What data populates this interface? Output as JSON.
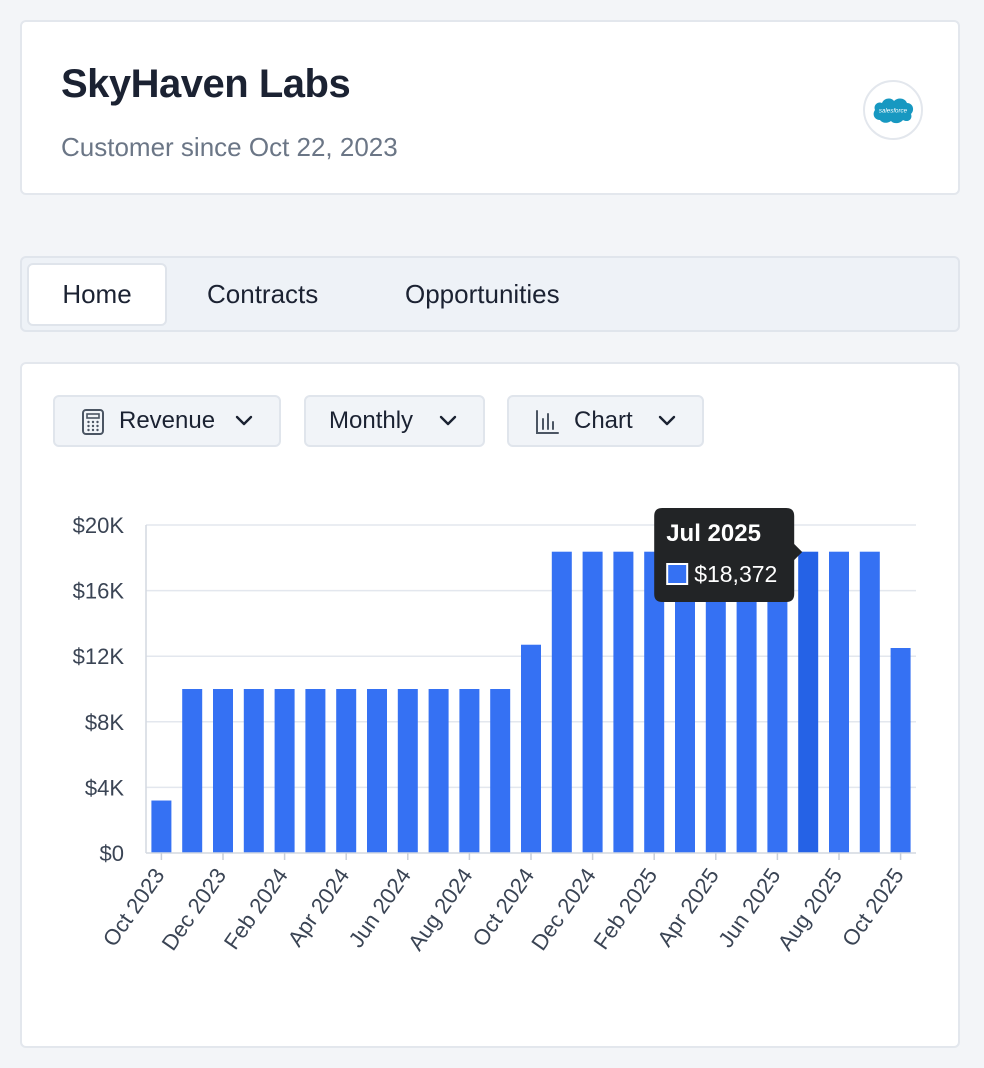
{
  "header": {
    "company_name": "SkyHaven Labs",
    "customer_since": "Customer since Oct 22, 2023",
    "logo_text": "salesforce",
    "logo_icon": "salesforce-cloud-icon"
  },
  "tabs": [
    {
      "label": "Home",
      "active": true
    },
    {
      "label": "Contracts",
      "active": false
    },
    {
      "label": "Opportunities",
      "active": false
    }
  ],
  "controls": {
    "metric": {
      "label": "Revenue",
      "icon": "calculator-icon"
    },
    "period": {
      "label": "Monthly"
    },
    "view": {
      "label": "Chart",
      "icon": "bar-chart-icon"
    }
  },
  "tooltip": {
    "title": "Jul 2025",
    "value": "$18,372"
  },
  "colors": {
    "bar": "#3571f3",
    "bar_hover": "#2562e6",
    "tooltip_bg": "#222426"
  },
  "chart_data": {
    "type": "bar",
    "title": "",
    "xlabel": "",
    "ylabel": "",
    "ylim": [
      0,
      20000
    ],
    "yticks": [
      0,
      4000,
      8000,
      12000,
      16000,
      20000
    ],
    "ytick_labels": [
      "$0",
      "$4K",
      "$8K",
      "$12K",
      "$16K",
      "$20K"
    ],
    "grid": true,
    "legend": "none",
    "highlight_index": 21,
    "categories": [
      "Oct 2023",
      "Nov 2023",
      "Dec 2023",
      "Jan 2024",
      "Feb 2024",
      "Mar 2024",
      "Apr 2024",
      "May 2024",
      "Jun 2024",
      "Jul 2024",
      "Aug 2024",
      "Sep 2024",
      "Oct 2024",
      "Nov 2024",
      "Dec 2024",
      "Jan 2025",
      "Feb 2025",
      "Mar 2025",
      "Apr 2025",
      "May 2025",
      "Jun 2025",
      "Jul 2025",
      "Aug 2025",
      "Sep 2025",
      "Oct 2025"
    ],
    "tick_labels": [
      "Oct 2023",
      "Dec 2023",
      "Feb 2024",
      "Apr 2024",
      "Jun 2024",
      "Aug 2024",
      "Oct 2024",
      "Dec 2024",
      "Feb 2025",
      "Apr 2025",
      "Jun 2025",
      "Aug 2025",
      "Oct 2025"
    ],
    "values": [
      3200,
      10000,
      10000,
      10000,
      10000,
      10000,
      10000,
      10000,
      10000,
      10000,
      10000,
      10000,
      12700,
      18372,
      18372,
      18372,
      18372,
      18372,
      18372,
      18372,
      18372,
      18372,
      18372,
      18372,
      12500
    ]
  }
}
